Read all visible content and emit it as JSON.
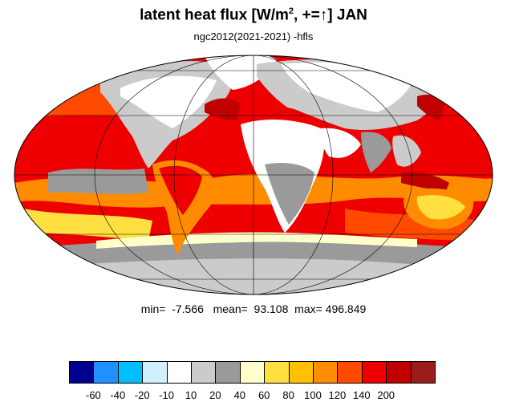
{
  "title": {
    "text": "latent heat flux [W/m",
    "superscript": "2",
    "suffix": ", +=",
    "arrow": "↑",
    "month_part": "]  JAN"
  },
  "subtitle": "ngc2012(2021-2021)     -hfls",
  "stats": "min=  -7.566   mean=  93.108  max= 496.849",
  "colorbar": {
    "colors": [
      "#00008f",
      "#1e90ff",
      "#00bfff",
      "#d0f0ff",
      "#ffffff",
      "#cbcbcb",
      "#9a9a9a",
      "#ffffcc",
      "#ffe040",
      "#ffc000",
      "#ff8c00",
      "#ff4a00",
      "#ee0000",
      "#c00000",
      "#9c1c1c"
    ],
    "labels": [
      "-60",
      "-40",
      "-20",
      "-10",
      "10",
      "20",
      "40",
      "60",
      "80",
      "100",
      "120",
      "140",
      "200"
    ]
  },
  "map_colors": {
    "ocean_strong": "#ee0000",
    "ocean_mid": "#ff4a00",
    "ocean_orange": "#ff8c00",
    "ocean_dark": "#c00000",
    "land_white": "#ffffff",
    "land_gray": "#cbcbcb",
    "land_dark": "#9a9a9a",
    "yellow": "#ffe040",
    "pale": "#ffffcc",
    "cold": "#9a9a9a"
  }
}
